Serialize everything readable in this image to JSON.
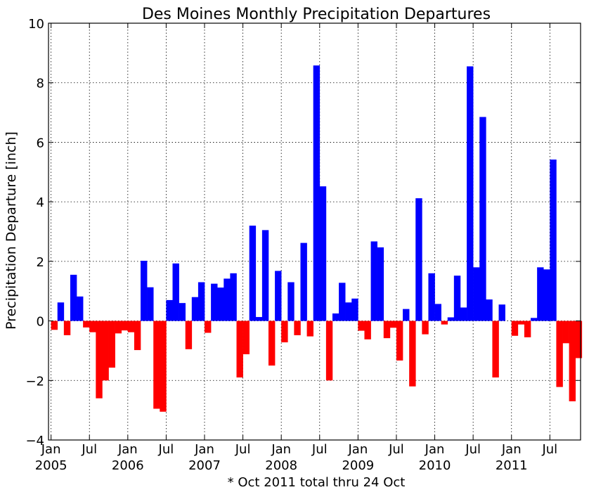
{
  "chart_data": {
    "type": "bar",
    "title": "Des Moines Monthly Precipitation Departures",
    "ylabel": "Precipitation Departure [inch]",
    "xlabel": "",
    "footnote": "* Oct 2011 total thru 24 Oct",
    "ylim": [
      -4,
      10
    ],
    "yticks": [
      -4,
      -2,
      0,
      2,
      4,
      6,
      8,
      10
    ],
    "ytick_labels": [
      "−4",
      "−2",
      "0",
      "2",
      "4",
      "6",
      "8",
      "10"
    ],
    "x_start": "2005-01",
    "x_ticks": [
      {
        "month_index": 0,
        "label": "Jan",
        "year": "2005"
      },
      {
        "month_index": 6,
        "label": "Jul",
        "year": ""
      },
      {
        "month_index": 12,
        "label": "Jan",
        "year": "2006"
      },
      {
        "month_index": 18,
        "label": "Jul",
        "year": ""
      },
      {
        "month_index": 24,
        "label": "Jan",
        "year": "2007"
      },
      {
        "month_index": 30,
        "label": "Jul",
        "year": ""
      },
      {
        "month_index": 36,
        "label": "Jan",
        "year": "2008"
      },
      {
        "month_index": 42,
        "label": "Jul",
        "year": ""
      },
      {
        "month_index": 48,
        "label": "Jan",
        "year": "2009"
      },
      {
        "month_index": 54,
        "label": "Jul",
        "year": ""
      },
      {
        "month_index": 60,
        "label": "Jan",
        "year": "2010"
      },
      {
        "month_index": 66,
        "label": "Jul",
        "year": ""
      },
      {
        "month_index": 72,
        "label": "Jan",
        "year": "2011"
      },
      {
        "month_index": 78,
        "label": "Jul",
        "year": ""
      }
    ],
    "grid": true,
    "colors": {
      "positive": "#0000ff",
      "negative": "#ff0000"
    },
    "values": [
      -0.3,
      0.62,
      -0.48,
      1.55,
      0.82,
      -0.22,
      -0.38,
      -2.6,
      -2.0,
      -1.57,
      -0.42,
      -0.32,
      -0.38,
      -0.98,
      2.02,
      1.13,
      -2.95,
      -3.05,
      0.7,
      1.93,
      0.6,
      -0.95,
      0.8,
      1.3,
      -0.4,
      1.25,
      1.12,
      1.42,
      1.6,
      -1.9,
      -1.12,
      3.2,
      0.13,
      3.05,
      -1.5,
      1.68,
      -0.72,
      1.3,
      -0.48,
      2.62,
      -0.52,
      8.58,
      4.52,
      -2.0,
      0.25,
      1.28,
      0.62,
      0.75,
      -0.33,
      -0.62,
      2.67,
      2.47,
      -0.58,
      -0.23,
      -1.33,
      0.4,
      -2.2,
      4.12,
      -0.45,
      1.6,
      0.57,
      -0.12,
      0.12,
      1.52,
      0.45,
      8.55,
      1.8,
      6.85,
      0.72,
      -1.9,
      0.55,
      0.0,
      -0.5,
      -0.12,
      -0.55,
      0.1,
      1.8,
      1.73,
      5.42,
      -2.22,
      -0.75,
      -2.7,
      -1.25
    ]
  }
}
